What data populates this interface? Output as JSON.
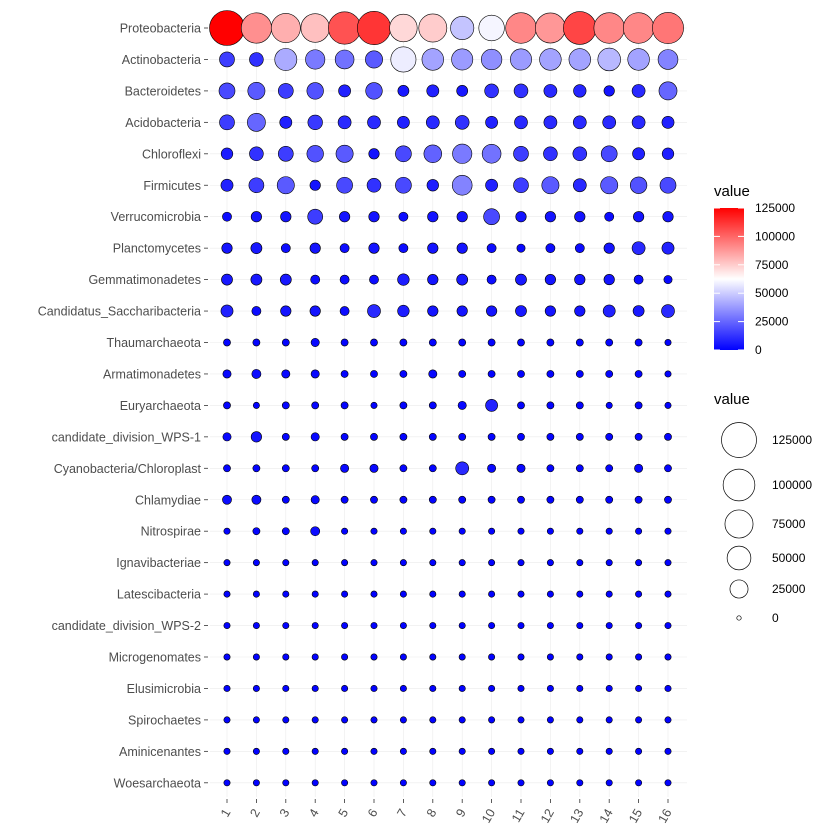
{
  "chart_data": {
    "type": "scatter",
    "x_categories": [
      "1",
      "2",
      "3",
      "4",
      "5",
      "6",
      "7",
      "8",
      "9",
      "10",
      "11",
      "12",
      "13",
      "14",
      "15",
      "16"
    ],
    "y_categories": [
      "Proteobacteria",
      "Actinobacteria",
      "Bacteroidetes",
      "Acidobacteria",
      "Chloroflexi",
      "Firmicutes",
      "Verrucomicrobia",
      "Planctomycetes",
      "Gemmatimonadetes",
      "Candidatus_Saccharibacteria",
      "Thaumarchaeota",
      "Armatimonadetes",
      "Euryarchaeota",
      "candidate_division_WPS-1",
      "Cyanobacteria/Chloroplast",
      "Chlamydiae",
      "Nitrospirae",
      "Ignavibacteriae",
      "Latescibacteria",
      "candidate_division_WPS-2",
      "Microgenomates",
      "Elusimicrobia",
      "Spirochaetes",
      "Aminicenantes",
      "Woesarchaeota"
    ],
    "values": [
      [
        125000,
        90000,
        82000,
        78000,
        105000,
        112000,
        72000,
        75000,
        48000,
        60000,
        92000,
        88000,
        108000,
        92000,
        92000,
        96000
      ],
      [
        15000,
        12000,
        42000,
        30000,
        28000,
        22000,
        58000,
        40000,
        38000,
        35000,
        38000,
        40000,
        40000,
        45000,
        40000,
        32000
      ],
      [
        18000,
        22000,
        15000,
        20000,
        8000,
        20000,
        6000,
        8000,
        6000,
        12000,
        12000,
        10000,
        9000,
        5000,
        10000,
        25000
      ],
      [
        15000,
        25000,
        8000,
        14000,
        10000,
        10000,
        8000,
        10000,
        12000,
        8000,
        10000,
        10000,
        10000,
        10000,
        10000,
        8000
      ],
      [
        7000,
        12000,
        15000,
        20000,
        22000,
        5000,
        18000,
        24000,
        30000,
        28000,
        15000,
        12000,
        12000,
        18000,
        8000,
        7000
      ],
      [
        8000,
        15000,
        22000,
        5000,
        18000,
        12000,
        18000,
        7000,
        32000,
        8000,
        15000,
        22000,
        10000,
        22000,
        20000,
        18000
      ],
      [
        3000,
        5000,
        5000,
        15000,
        5000,
        5000,
        3000,
        5000,
        5000,
        18000,
        5000,
        5000,
        5000,
        3000,
        5000,
        5000
      ],
      [
        5000,
        6000,
        3000,
        5000,
        3000,
        5000,
        3000,
        5000,
        5000,
        3000,
        2000,
        3000,
        3000,
        5000,
        10000,
        8000
      ],
      [
        6000,
        6000,
        6000,
        3000,
        3000,
        3000,
        7000,
        5000,
        6000,
        3000,
        6000,
        5000,
        5000,
        5000,
        3000,
        2000
      ],
      [
        8000,
        3000,
        5000,
        5000,
        3000,
        10000,
        7000,
        5000,
        5000,
        5000,
        6000,
        5000,
        5000,
        8000,
        6000,
        10000
      ],
      [
        1000,
        1000,
        1000,
        2000,
        1000,
        1000,
        1000,
        1000,
        1000,
        1000,
        1000,
        1000,
        1000,
        1000,
        1000,
        500
      ],
      [
        2000,
        3000,
        2000,
        2000,
        1000,
        1000,
        1000,
        2000,
        1000,
        1000,
        1000,
        1000,
        1000,
        1000,
        1000,
        500
      ],
      [
        1000,
        500,
        1000,
        1000,
        1000,
        500,
        1000,
        1000,
        2000,
        8000,
        1000,
        1000,
        1000,
        500,
        1000,
        500
      ],
      [
        2000,
        5000,
        1000,
        2000,
        1000,
        1000,
        1000,
        1000,
        1000,
        1000,
        1000,
        1000,
        1000,
        1000,
        1000,
        1000
      ],
      [
        1000,
        1000,
        1000,
        1000,
        2000,
        2000,
        1000,
        1000,
        10000,
        2000,
        2000,
        1000,
        1000,
        1000,
        2000,
        1000
      ],
      [
        3000,
        3000,
        1000,
        2000,
        1000,
        1000,
        1000,
        1000,
        1000,
        1000,
        1000,
        1000,
        1000,
        1000,
        1000,
        1000
      ],
      [
        500,
        1000,
        1000,
        3000,
        500,
        500,
        500,
        500,
        500,
        500,
        500,
        500,
        500,
        500,
        500,
        500
      ],
      [
        500,
        500,
        500,
        500,
        500,
        500,
        500,
        500,
        500,
        500,
        500,
        500,
        500,
        500,
        500,
        500
      ],
      [
        500,
        500,
        500,
        500,
        500,
        500,
        500,
        500,
        500,
        500,
        500,
        500,
        500,
        500,
        500,
        500
      ],
      [
        500,
        500,
        500,
        500,
        500,
        500,
        500,
        500,
        500,
        500,
        500,
        500,
        500,
        500,
        500,
        500
      ],
      [
        500,
        500,
        500,
        500,
        500,
        500,
        500,
        500,
        500,
        500,
        500,
        500,
        500,
        500,
        500,
        500
      ],
      [
        500,
        500,
        500,
        500,
        500,
        500,
        500,
        500,
        500,
        500,
        500,
        500,
        500,
        500,
        500,
        500
      ],
      [
        500,
        500,
        500,
        500,
        500,
        500,
        500,
        500,
        500,
        500,
        500,
        500,
        500,
        500,
        500,
        500
      ],
      [
        500,
        500,
        500,
        500,
        500,
        500,
        500,
        500,
        500,
        500,
        500,
        500,
        500,
        500,
        500,
        500
      ],
      [
        500,
        500,
        500,
        500,
        500,
        500,
        500,
        500,
        500,
        500,
        500,
        500,
        500,
        500,
        500,
        500
      ]
    ],
    "color_scale": {
      "title": "value",
      "domain": [
        0,
        125000
      ],
      "low": "#0000ff",
      "mid": "#ffffff",
      "high": "#ff0000",
      "ticks": [
        0,
        25000,
        50000,
        75000,
        100000,
        125000
      ]
    },
    "size_scale": {
      "title": "value",
      "domain": [
        0,
        125000
      ],
      "ticks": [
        0,
        25000,
        50000,
        75000,
        100000,
        125000
      ]
    },
    "grid": true,
    "legend_position": "right",
    "xlabel": "",
    "ylabel": "",
    "title": ""
  }
}
